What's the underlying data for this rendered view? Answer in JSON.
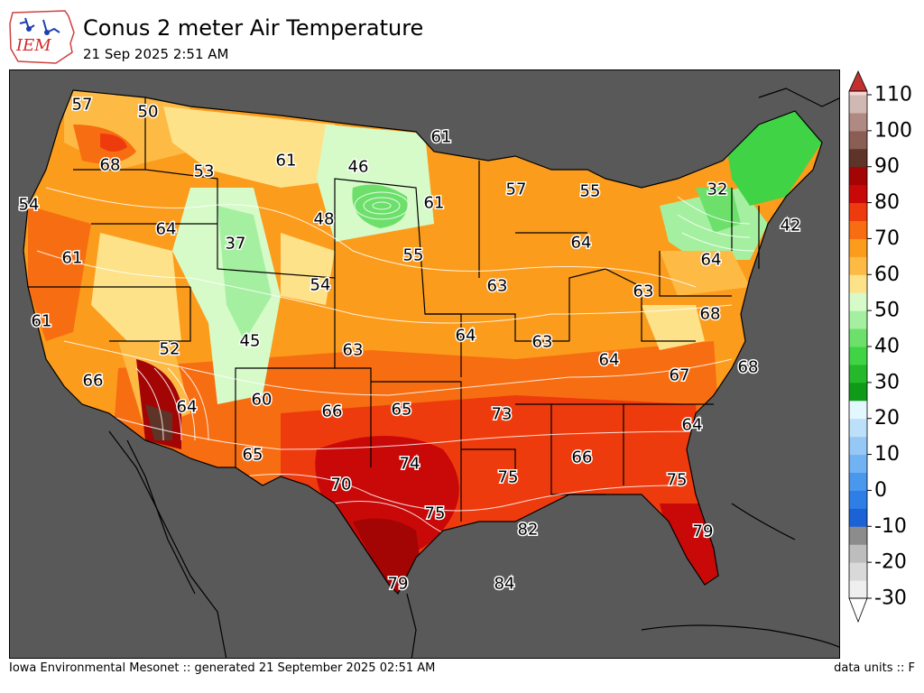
{
  "header": {
    "logo_text": "IEM",
    "title": "Conus 2 meter Air Temperature",
    "subtitle": "21 Sep 2025 2:51 AM"
  },
  "footer": {
    "left": "Iowa Environmental Mesonet :: generated 21 September 2025 02:51 AM",
    "right": "data units :: F"
  },
  "colors": {
    "background_water": "#595959",
    "state_lines": "#000000",
    "contour_lines": "#ffffff"
  },
  "colorbar": {
    "ticks": [
      110,
      100,
      90,
      80,
      70,
      60,
      50,
      40,
      30,
      20,
      10,
      0,
      -10,
      -20,
      -30
    ],
    "range": [
      -30,
      110
    ],
    "bands": [
      {
        "from": -30,
        "to": -25,
        "color": "#efefef"
      },
      {
        "from": -25,
        "to": -20,
        "color": "#d9d9d9"
      },
      {
        "from": -20,
        "to": -15,
        "color": "#bdbdbd"
      },
      {
        "from": -15,
        "to": -10,
        "color": "#8c8c8c"
      },
      {
        "from": -10,
        "to": -5,
        "color": "#1a62d6"
      },
      {
        "from": -5,
        "to": 0,
        "color": "#2e7ee6"
      },
      {
        "from": 0,
        "to": 5,
        "color": "#4a98ee"
      },
      {
        "from": 5,
        "to": 10,
        "color": "#71b2f3"
      },
      {
        "from": 10,
        "to": 15,
        "color": "#96c8f6"
      },
      {
        "from": 15,
        "to": 20,
        "color": "#bde0fa"
      },
      {
        "from": 20,
        "to": 25,
        "color": "#e3f7ff"
      },
      {
        "from": 25,
        "to": 30,
        "color": "#0f9a18"
      },
      {
        "from": 30,
        "to": 35,
        "color": "#25b82a"
      },
      {
        "from": 35,
        "to": 40,
        "color": "#3fd345"
      },
      {
        "from": 40,
        "to": 45,
        "color": "#6ce06a"
      },
      {
        "from": 45,
        "to": 50,
        "color": "#a5f0a0"
      },
      {
        "from": 50,
        "to": 55,
        "color": "#d6fbc9"
      },
      {
        "from": 55,
        "to": 60,
        "color": "#fde28a"
      },
      {
        "from": 60,
        "to": 65,
        "color": "#fdba45"
      },
      {
        "from": 65,
        "to": 70,
        "color": "#fc9c1c"
      },
      {
        "from": 70,
        "to": 75,
        "color": "#f76d12"
      },
      {
        "from": 75,
        "to": 80,
        "color": "#ee3b0e"
      },
      {
        "from": 80,
        "to": 85,
        "color": "#c90808"
      },
      {
        "from": 85,
        "to": 90,
        "color": "#a30404"
      },
      {
        "from": 90,
        "to": 95,
        "color": "#5e3328"
      },
      {
        "from": 95,
        "to": 100,
        "color": "#8b5e55"
      },
      {
        "from": 100,
        "to": 105,
        "color": "#b08a82"
      },
      {
        "from": 105,
        "to": 110,
        "color": "#d0b9b3"
      },
      {
        "from": 110,
        "to": 115,
        "color": "#f6d4d4"
      },
      {
        "from": 115,
        "to": 120,
        "color": "#f3b3b3"
      },
      {
        "from": 120,
        "to": 125,
        "color": "#ea8888"
      },
      {
        "from": 125,
        "to": 130,
        "color": "#d96262"
      }
    ]
  },
  "map_labels": [
    {
      "text": "57"
    },
    {
      "text": "50"
    },
    {
      "text": "68"
    },
    {
      "text": "53"
    },
    {
      "text": "61"
    },
    {
      "text": "46"
    },
    {
      "text": "61"
    },
    {
      "text": "54"
    },
    {
      "text": "64"
    },
    {
      "text": "48"
    },
    {
      "text": "61"
    },
    {
      "text": "57"
    },
    {
      "text": "55"
    },
    {
      "text": "32"
    },
    {
      "text": "42"
    },
    {
      "text": "37"
    },
    {
      "text": "61"
    },
    {
      "text": "55"
    },
    {
      "text": "64"
    },
    {
      "text": "64"
    },
    {
      "text": "54"
    },
    {
      "text": "63"
    },
    {
      "text": "63"
    },
    {
      "text": "61"
    },
    {
      "text": "68"
    },
    {
      "text": "52"
    },
    {
      "text": "45"
    },
    {
      "text": "63"
    },
    {
      "text": "64"
    },
    {
      "text": "63"
    },
    {
      "text": "64"
    },
    {
      "text": "67"
    },
    {
      "text": "68"
    },
    {
      "text": "66"
    },
    {
      "text": "60"
    },
    {
      "text": "64"
    },
    {
      "text": "66"
    },
    {
      "text": "65"
    },
    {
      "text": "73"
    },
    {
      "text": "64"
    },
    {
      "text": "65"
    },
    {
      "text": "74"
    },
    {
      "text": "75"
    },
    {
      "text": "66"
    },
    {
      "text": "75"
    },
    {
      "text": "70"
    },
    {
      "text": "75"
    },
    {
      "text": "82"
    },
    {
      "text": "79"
    },
    {
      "text": "79"
    },
    {
      "text": "84"
    }
  ]
}
